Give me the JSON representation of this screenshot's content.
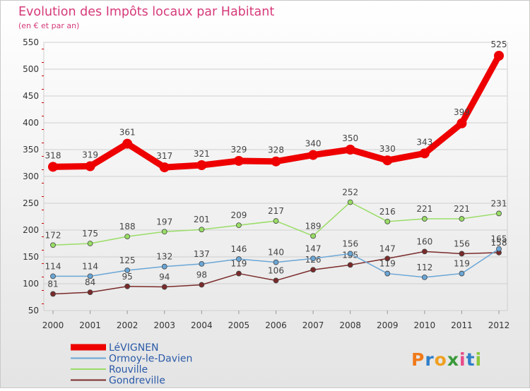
{
  "chart_data": {
    "type": "line",
    "title": "Evolution des Impôts locaux par Habitant",
    "subtitle": "(en € et par an)",
    "xlabel": "",
    "ylabel": "",
    "x": [
      "2000",
      "2001",
      "2002",
      "2003",
      "2004",
      "2005",
      "2006",
      "2007",
      "2008",
      "2009",
      "2010",
      "2011",
      "2012"
    ],
    "ylim": [
      50,
      550
    ],
    "yticks": [
      50,
      100,
      150,
      200,
      250,
      300,
      350,
      400,
      450,
      500,
      550
    ],
    "grid": true,
    "legend_position": "bottom-left",
    "series": [
      {
        "name": "LéVIGNEN",
        "color": "#ee0000",
        "values": [
          318,
          319,
          361,
          317,
          321,
          329,
          328,
          340,
          350,
          330,
          343,
          399,
          525
        ]
      },
      {
        "name": "Ormoy-le-Davien",
        "color": "#6aa6d6",
        "values": [
          114,
          114,
          125,
          132,
          137,
          146,
          140,
          147,
          156,
          119,
          112,
          119,
          165
        ]
      },
      {
        "name": "Rouville",
        "color": "#99dd66",
        "values": [
          172,
          175,
          188,
          197,
          201,
          209,
          217,
          189,
          252,
          216,
          221,
          221,
          231
        ]
      },
      {
        "name": "Gondreville",
        "color": "#7a2a2a",
        "values": [
          81,
          84,
          95,
          94,
          98,
          119,
          106,
          126,
          135,
          147,
          160,
          156,
          158
        ]
      }
    ]
  },
  "brand": {
    "logo_text": "Proxiti"
  },
  "colors": {
    "title": "#d63a7a",
    "background_top": "#ffffff",
    "background_bottom": "#e6e6e6",
    "border": "#c9c9c9"
  }
}
